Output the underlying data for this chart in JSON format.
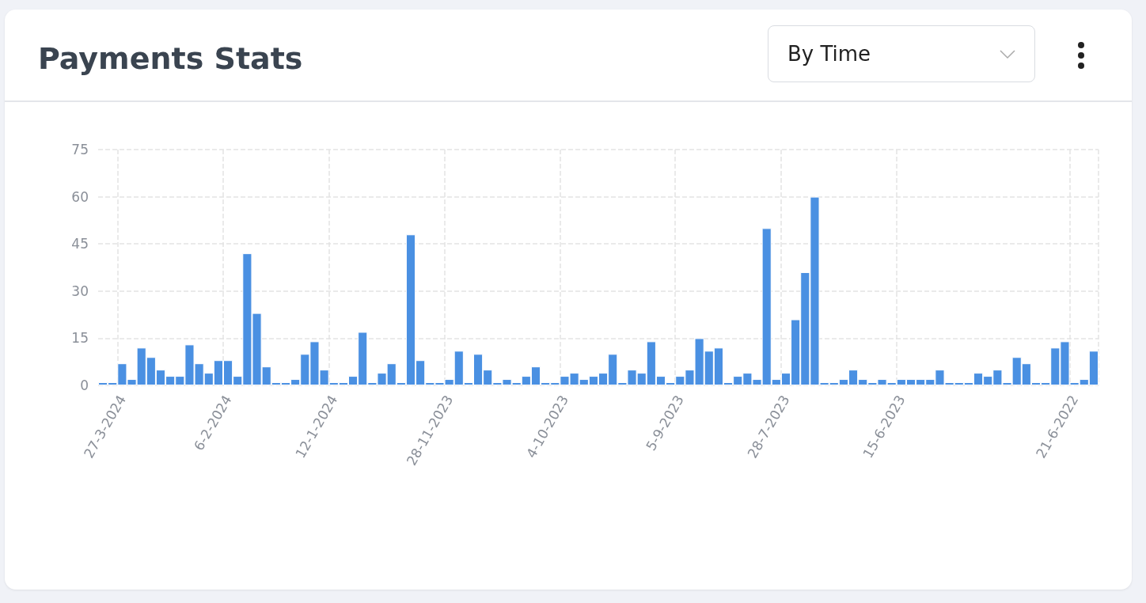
{
  "chart_data": {
    "type": "bar",
    "title": "Payments Stats",
    "annotations": [
      "By Time"
    ],
    "categories": [
      null,
      null,
      "27-3-2024",
      null,
      null,
      null,
      null,
      null,
      null,
      null,
      null,
      null,
      null,
      "6-2-2024",
      null,
      null,
      null,
      null,
      null,
      null,
      null,
      null,
      null,
      null,
      "12-1-2024",
      null,
      null,
      null,
      null,
      null,
      null,
      null,
      null,
      null,
      null,
      null,
      "28-11-2023",
      null,
      null,
      null,
      null,
      null,
      null,
      null,
      null,
      null,
      null,
      null,
      "4-10-2023",
      null,
      null,
      null,
      null,
      null,
      null,
      null,
      null,
      null,
      null,
      null,
      "5-9-2023",
      null,
      null,
      null,
      null,
      null,
      null,
      null,
      null,
      null,
      null,
      "28-7-2023",
      null,
      null,
      null,
      null,
      null,
      null,
      null,
      null,
      null,
      null,
      null,
      "15-6-2023",
      null,
      null,
      null,
      null,
      null,
      null,
      null,
      null,
      null,
      null,
      null,
      null,
      null,
      null,
      null,
      null,
      null,
      "21-6-2022",
      null,
      null
    ],
    "values": [
      1,
      1,
      7,
      2,
      12,
      9,
      5,
      3,
      3,
      13,
      7,
      4,
      8,
      8,
      3,
      42,
      23,
      6,
      1,
      1,
      2,
      10,
      14,
      5,
      1,
      1,
      3,
      17,
      1,
      4,
      7,
      1,
      48,
      8,
      1,
      1,
      2,
      11,
      1,
      10,
      5,
      1,
      2,
      1,
      3,
      6,
      1,
      1,
      3,
      4,
      2,
      3,
      4,
      10,
      1,
      5,
      4,
      14,
      3,
      1,
      3,
      5,
      15,
      11,
      12,
      1,
      3,
      4,
      2,
      50,
      2,
      4,
      21,
      36,
      60,
      1,
      1,
      2,
      5,
      2,
      1,
      2,
      1,
      2,
      2,
      2,
      2,
      5,
      1,
      1,
      1,
      4,
      3,
      5,
      1,
      9,
      7,
      1,
      1,
      12,
      14,
      1,
      2,
      11
    ],
    "color": "#4a90e2",
    "ylim": [
      0,
      75
    ],
    "yticks": [
      0,
      15,
      30,
      45,
      60,
      75
    ],
    "grid": true
  }
}
